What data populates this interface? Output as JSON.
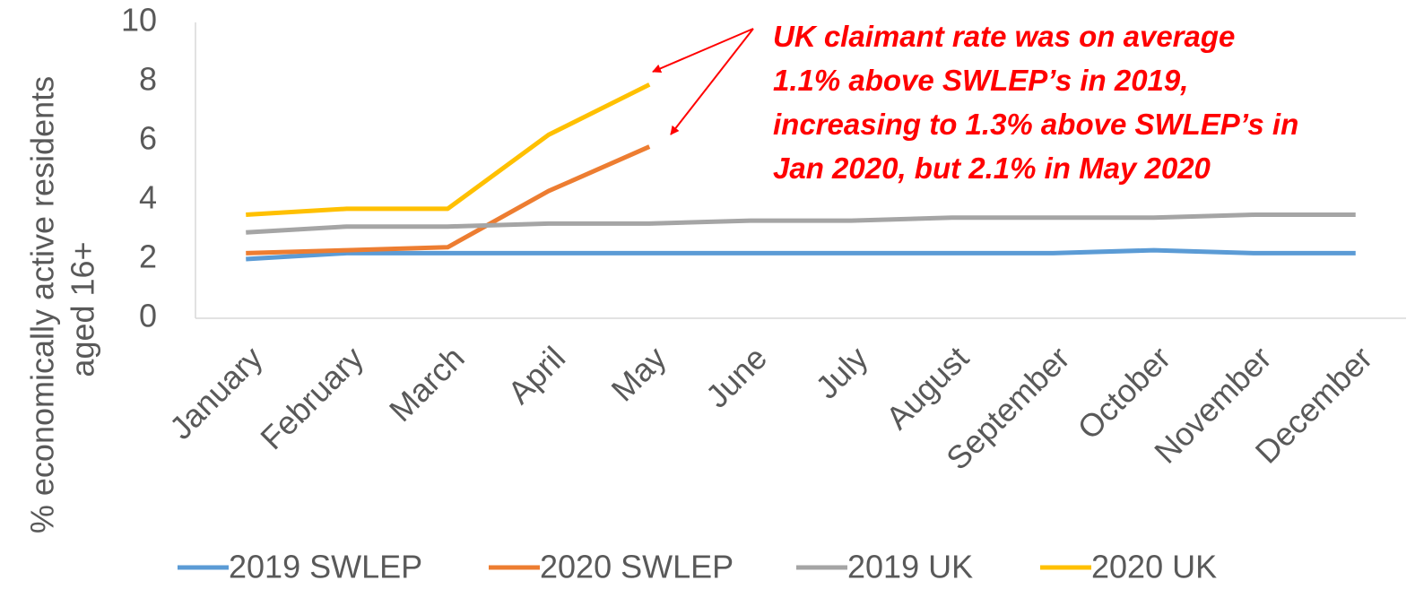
{
  "chart_data": {
    "type": "line",
    "y_label": [
      "% economically active residents",
      "aged 16+"
    ],
    "annotation": [
      "UK claimant rate was on average",
      "1.1% above SWLEP’s in 2019,",
      "increasing to 1.3% above SWLEP’s in",
      "Jan 2020, but 2.1% in May 2020"
    ],
    "categories": [
      "January",
      "February",
      "March",
      "April",
      "May",
      "June",
      "July",
      "August",
      "September",
      "October",
      "November",
      "December"
    ],
    "series": [
      {
        "name": "2019 SWLEP",
        "color": "#5b9bd5",
        "values": [
          2.0,
          2.2,
          2.2,
          2.2,
          2.2,
          2.2,
          2.2,
          2.2,
          2.2,
          2.3,
          2.2,
          2.2
        ]
      },
      {
        "name": "2020 SWLEP",
        "color": "#ed7d31",
        "values": [
          2.2,
          2.3,
          2.4,
          4.3,
          5.8,
          null,
          null,
          null,
          null,
          null,
          null,
          null
        ]
      },
      {
        "name": "2019 UK",
        "color": "#a5a5a5",
        "values": [
          2.9,
          3.1,
          3.1,
          3.2,
          3.2,
          3.3,
          3.3,
          3.4,
          3.4,
          3.4,
          3.5,
          3.5
        ]
      },
      {
        "name": "2020 UK",
        "color": "#ffc000",
        "values": [
          3.5,
          3.7,
          3.7,
          6.2,
          7.9,
          null,
          null,
          null,
          null,
          null,
          null,
          null
        ]
      }
    ],
    "ylim": [
      0,
      10
    ],
    "yticks": [
      0,
      2,
      4,
      6,
      8,
      10
    ],
    "grid": false,
    "legend": "bottom"
  }
}
